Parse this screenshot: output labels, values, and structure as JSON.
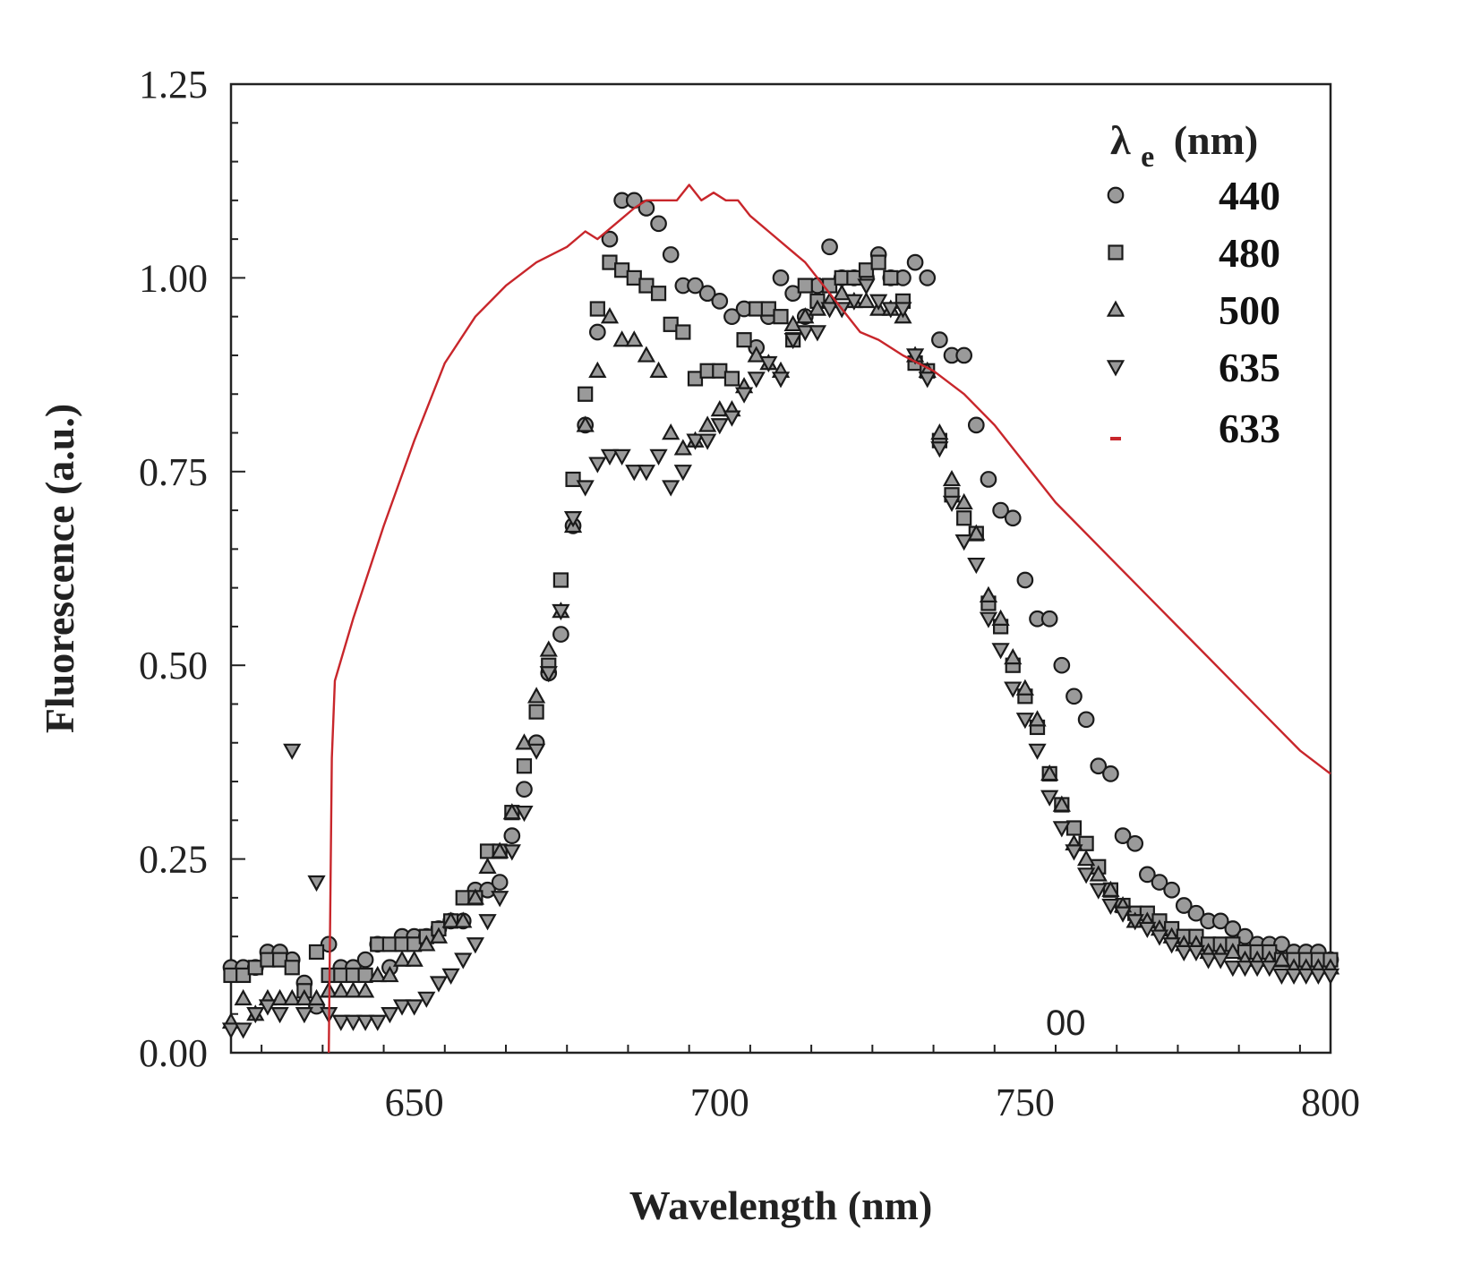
{
  "chart_data": {
    "type": "scatter",
    "title": "",
    "xlabel": "Wavelength (nm)",
    "ylabel": "Fluorescence (a.u.)",
    "xlim": [
      620,
      800
    ],
    "ylim": [
      0,
      1.25
    ],
    "xticks": [
      "650",
      "700",
      "750",
      "800"
    ],
    "yticks": [
      "0.00",
      "0.25",
      "0.50",
      "0.75",
      "1.00",
      "1.25"
    ],
    "grid": false,
    "legend": {
      "placement": "top-right",
      "title_main": "λ",
      "title_sub": "e",
      "title_unit": "(nm)"
    },
    "annotations": [
      "00"
    ],
    "series": [
      {
        "name": "440",
        "marker": "circle",
        "color": "#888888",
        "x": [
          620,
          622,
          624,
          626,
          628,
          630,
          632,
          634,
          636,
          638,
          640,
          642,
          644,
          646,
          648,
          650,
          652,
          654,
          656,
          658,
          660,
          662,
          664,
          666,
          668,
          670,
          672,
          674,
          676,
          678,
          680,
          682,
          684,
          686,
          688,
          690,
          692,
          694,
          696,
          698,
          700,
          702,
          704,
          706,
          708,
          710,
          712,
          714,
          716,
          718,
          720,
          722,
          724,
          726,
          728,
          730,
          732,
          734,
          736,
          738,
          740,
          742,
          744,
          746,
          748,
          750,
          752,
          754,
          756,
          758,
          760,
          762,
          764,
          766,
          768,
          770,
          772,
          774,
          776,
          778,
          780,
          782,
          784,
          786,
          788,
          790,
          792,
          794,
          796,
          798,
          800
        ],
        "y": [
          0.11,
          0.11,
          0.11,
          0.13,
          0.13,
          0.12,
          0.09,
          0.06,
          0.14,
          0.11,
          0.11,
          0.12,
          0.14,
          0.11,
          0.15,
          0.15,
          0.15,
          0.16,
          0.17,
          0.17,
          0.21,
          0.21,
          0.22,
          0.28,
          0.34,
          0.4,
          0.49,
          0.54,
          0.68,
          0.81,
          0.93,
          1.05,
          1.1,
          1.1,
          1.09,
          1.07,
          1.03,
          0.99,
          0.99,
          0.98,
          0.97,
          0.95,
          0.96,
          0.91,
          0.95,
          1.0,
          0.98,
          0.95,
          0.99,
          1.04,
          1.0,
          1.0,
          1.0,
          1.03,
          1.0,
          1.0,
          1.02,
          1.0,
          0.92,
          0.9,
          0.9,
          0.81,
          0.74,
          0.7,
          0.69,
          0.61,
          0.56,
          0.56,
          0.5,
          0.46,
          0.43,
          0.37,
          0.36,
          0.28,
          0.27,
          0.23,
          0.22,
          0.21,
          0.19,
          0.18,
          0.17,
          0.17,
          0.16,
          0.15,
          0.14,
          0.14,
          0.14,
          0.13,
          0.13,
          0.13,
          0.12
        ]
      },
      {
        "name": "480",
        "marker": "square",
        "color": "#888888",
        "x": [
          620,
          622,
          624,
          626,
          628,
          630,
          632,
          634,
          636,
          638,
          640,
          642,
          644,
          646,
          648,
          650,
          652,
          654,
          656,
          658,
          660,
          662,
          664,
          666,
          668,
          670,
          672,
          674,
          676,
          678,
          680,
          682,
          684,
          686,
          688,
          690,
          692,
          694,
          696,
          698,
          700,
          702,
          704,
          706,
          708,
          710,
          712,
          714,
          716,
          718,
          720,
          722,
          724,
          726,
          728,
          730,
          732,
          734,
          736,
          738,
          740,
          742,
          744,
          746,
          748,
          750,
          752,
          754,
          756,
          758,
          760,
          762,
          764,
          766,
          768,
          770,
          772,
          774,
          776,
          778,
          780,
          782,
          784,
          786,
          788,
          790,
          792,
          794,
          796,
          798,
          800
        ],
        "y": [
          0.1,
          0.1,
          0.11,
          0.12,
          0.12,
          0.11,
          0.08,
          0.13,
          0.1,
          0.1,
          0.1,
          0.1,
          0.14,
          0.14,
          0.14,
          0.14,
          0.15,
          0.16,
          0.17,
          0.2,
          0.2,
          0.26,
          0.26,
          0.31,
          0.37,
          0.44,
          0.5,
          0.61,
          0.74,
          0.85,
          0.96,
          1.02,
          1.01,
          1.0,
          0.99,
          0.98,
          0.94,
          0.93,
          0.87,
          0.88,
          0.88,
          0.87,
          0.92,
          0.96,
          0.96,
          0.95,
          0.92,
          0.99,
          0.97,
          0.99,
          1.0,
          1.0,
          1.01,
          1.02,
          1.0,
          0.97,
          0.89,
          0.88,
          0.79,
          0.72,
          0.69,
          0.67,
          0.58,
          0.55,
          0.5,
          0.46,
          0.42,
          0.36,
          0.32,
          0.29,
          0.27,
          0.24,
          0.21,
          0.19,
          0.18,
          0.18,
          0.17,
          0.16,
          0.15,
          0.15,
          0.14,
          0.14,
          0.14,
          0.13,
          0.13,
          0.13,
          0.12,
          0.12,
          0.12,
          0.12,
          0.12
        ]
      },
      {
        "name": "500",
        "marker": "triangle-up",
        "color": "#888888",
        "x": [
          620,
          622,
          624,
          626,
          628,
          630,
          632,
          634,
          636,
          638,
          640,
          642,
          644,
          646,
          648,
          650,
          652,
          654,
          656,
          658,
          660,
          662,
          664,
          666,
          668,
          670,
          672,
          674,
          676,
          678,
          680,
          682,
          684,
          686,
          688,
          690,
          692,
          694,
          696,
          698,
          700,
          702,
          704,
          706,
          708,
          710,
          712,
          714,
          716,
          718,
          720,
          722,
          724,
          726,
          728,
          730,
          732,
          734,
          736,
          738,
          740,
          742,
          744,
          746,
          748,
          750,
          752,
          754,
          756,
          758,
          760,
          762,
          764,
          766,
          768,
          770,
          772,
          774,
          776,
          778,
          780,
          782,
          784,
          786,
          788,
          790,
          792,
          794,
          796,
          798,
          800
        ],
        "y": [
          0.04,
          0.07,
          0.05,
          0.07,
          0.07,
          0.07,
          0.07,
          0.07,
          0.08,
          0.08,
          0.08,
          0.08,
          0.1,
          0.1,
          0.12,
          0.12,
          0.14,
          0.15,
          0.17,
          0.17,
          0.2,
          0.24,
          0.26,
          0.31,
          0.4,
          0.46,
          0.52,
          0.57,
          0.68,
          0.81,
          0.88,
          0.95,
          0.92,
          0.92,
          0.9,
          0.88,
          0.8,
          0.78,
          0.79,
          0.81,
          0.83,
          0.83,
          0.86,
          0.9,
          0.89,
          0.88,
          0.94,
          0.95,
          0.96,
          0.97,
          0.98,
          0.97,
          0.97,
          0.96,
          0.96,
          0.95,
          0.9,
          0.88,
          0.8,
          0.74,
          0.71,
          0.67,
          0.59,
          0.56,
          0.51,
          0.47,
          0.43,
          0.36,
          0.32,
          0.27,
          0.25,
          0.23,
          0.21,
          0.19,
          0.17,
          0.17,
          0.16,
          0.15,
          0.14,
          0.14,
          0.13,
          0.13,
          0.13,
          0.12,
          0.12,
          0.12,
          0.12,
          0.11,
          0.11,
          0.11,
          0.11
        ]
      },
      {
        "name": "635",
        "marker": "triangle-down",
        "color": "#888888",
        "x": [
          620,
          622,
          624,
          626,
          628,
          630,
          632,
          634,
          636,
          638,
          640,
          642,
          644,
          646,
          648,
          650,
          652,
          654,
          656,
          658,
          660,
          662,
          664,
          666,
          668,
          670,
          672,
          674,
          676,
          678,
          680,
          682,
          684,
          686,
          688,
          690,
          692,
          694,
          696,
          698,
          700,
          702,
          704,
          706,
          708,
          710,
          712,
          714,
          716,
          718,
          720,
          722,
          724,
          726,
          728,
          730,
          732,
          734,
          736,
          738,
          740,
          742,
          744,
          746,
          748,
          750,
          752,
          754,
          756,
          758,
          760,
          762,
          764,
          766,
          768,
          770,
          772,
          774,
          776,
          778,
          780,
          782,
          784,
          786,
          788,
          790,
          792,
          794,
          796,
          798,
          800
        ],
        "y": [
          0.03,
          0.03,
          0.05,
          0.06,
          0.05,
          0.39,
          0.05,
          0.22,
          0.05,
          0.04,
          0.04,
          0.04,
          0.04,
          0.05,
          0.06,
          0.06,
          0.07,
          0.09,
          0.1,
          0.12,
          0.14,
          0.17,
          0.2,
          0.26,
          0.31,
          0.39,
          0.49,
          0.57,
          0.69,
          0.73,
          0.76,
          0.77,
          0.77,
          0.75,
          0.75,
          0.77,
          0.73,
          0.75,
          0.79,
          0.79,
          0.81,
          0.82,
          0.85,
          0.87,
          0.89,
          0.87,
          0.92,
          0.93,
          0.93,
          0.96,
          0.96,
          0.97,
          0.99,
          0.97,
          0.96,
          0.96,
          0.9,
          0.87,
          0.78,
          0.71,
          0.66,
          0.63,
          0.56,
          0.52,
          0.47,
          0.43,
          0.39,
          0.33,
          0.29,
          0.26,
          0.23,
          0.21,
          0.19,
          0.18,
          0.17,
          0.16,
          0.15,
          0.14,
          0.13,
          0.13,
          0.12,
          0.12,
          0.11,
          0.11,
          0.11,
          0.11,
          0.1,
          0.1,
          0.1,
          0.1,
          0.1
        ]
      },
      {
        "name": "633",
        "marker": "line",
        "color": "#c8262b",
        "x": [
          636,
          636.5,
          637,
          640,
          645,
          650,
          655,
          660,
          665,
          670,
          675,
          678,
          680,
          683,
          686,
          688,
          690,
          693,
          695,
          697,
          699,
          701,
          703,
          705,
          708,
          711,
          714,
          717,
          720,
          723,
          726,
          730,
          735,
          740,
          745,
          750,
          755,
          760,
          765,
          770,
          775,
          780,
          785,
          790,
          795,
          800
        ],
        "y": [
          0,
          0.38,
          0.48,
          0.56,
          0.68,
          0.79,
          0.89,
          0.95,
          0.99,
          1.02,
          1.04,
          1.06,
          1.05,
          1.07,
          1.09,
          1.1,
          1.1,
          1.1,
          1.12,
          1.1,
          1.11,
          1.1,
          1.1,
          1.08,
          1.06,
          1.04,
          1.02,
          0.99,
          0.96,
          0.93,
          0.92,
          0.9,
          0.88,
          0.85,
          0.81,
          0.76,
          0.71,
          0.67,
          0.63,
          0.59,
          0.55,
          0.51,
          0.47,
          0.43,
          0.39,
          0.36
        ]
      }
    ]
  }
}
